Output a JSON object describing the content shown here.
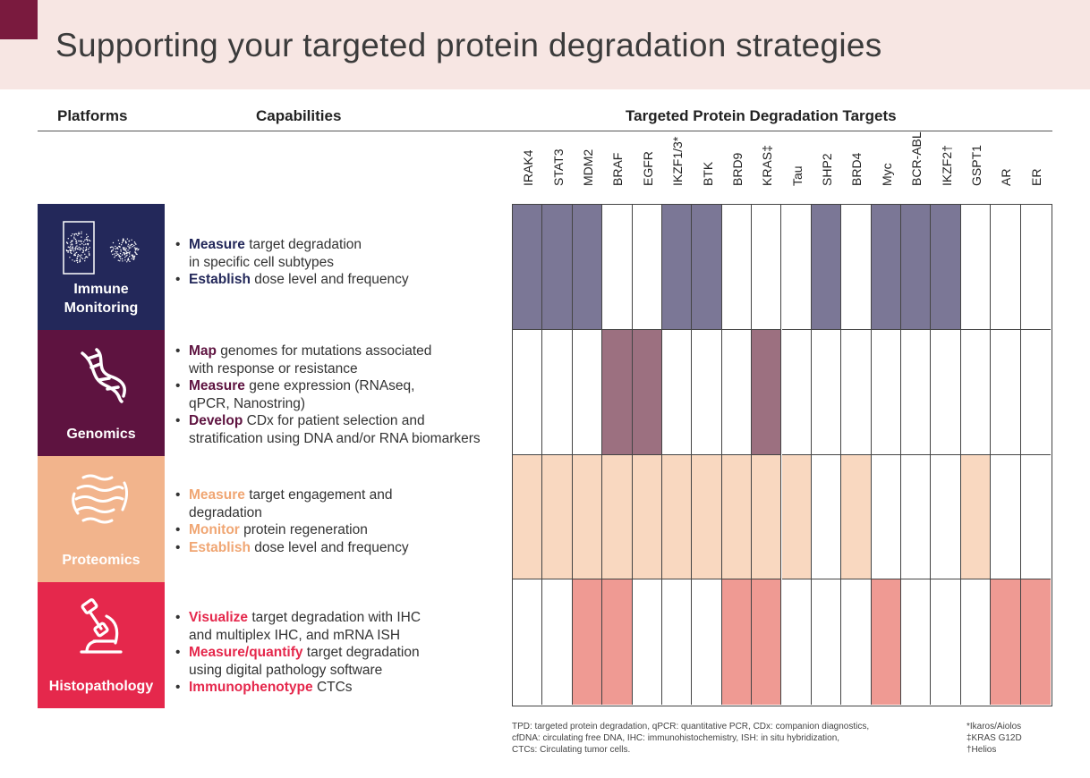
{
  "title": "Supporting your targeted protein degradation strategies",
  "headers": {
    "platforms": "Platforms",
    "capabilities": "Capabilities",
    "targets": "Targeted Protein Degradation Targets"
  },
  "targets": [
    "IRAK4",
    "STAT3",
    "MDM2",
    "BRAF",
    "EGFR",
    "IKZF1/3*",
    "BTK",
    "BRD9",
    "KRAS‡",
    "Tau",
    "SHP2",
    "BRD4",
    "Myc",
    "BCR-ABL",
    "IKZF2†",
    "GSPT1",
    "AR",
    "ER"
  ],
  "platforms": [
    {
      "name_line1": "Immune",
      "name_line2": "Monitoring",
      "icon": "flow-cytometry-icon",
      "tile_color": "#23285a",
      "keyword_color": "#23285a",
      "fill_color": "#7b7796",
      "capabilities": [
        {
          "kw": "Measure",
          "text": " target degradation",
          "cont": "in specific cell subtypes"
        },
        {
          "kw": "Establish",
          "text": " dose level and frequency",
          "cont": ""
        }
      ],
      "filled": [
        1,
        1,
        1,
        0,
        0,
        1,
        1,
        0,
        0,
        0,
        1,
        0,
        1,
        1,
        1,
        0,
        0,
        0
      ]
    },
    {
      "name_line1": "Genomics",
      "name_line2": "",
      "icon": "dna-icon",
      "tile_color": "#5e1340",
      "keyword_color": "#5e1340",
      "fill_color": "#9c7080",
      "capabilities": [
        {
          "kw": "Map",
          "text": " genomes for mutations associated",
          "cont": "with response or resistance"
        },
        {
          "kw": "Measure",
          "text": " gene expression (RNAseq,",
          "cont": "qPCR, Nanostring)"
        },
        {
          "kw": "Develop",
          "text": " CDx for patient selection and",
          "cont": "stratification using DNA and/or RNA biomarkers"
        }
      ],
      "filled": [
        0,
        0,
        0,
        1,
        1,
        0,
        0,
        0,
        1,
        0,
        0,
        0,
        0,
        0,
        0,
        0,
        0,
        0
      ]
    },
    {
      "name_line1": "Proteomics",
      "name_line2": "",
      "icon": "protein-structure-icon",
      "tile_color": "#f2b48c",
      "keyword_color": "#f0a673",
      "fill_color": "#f9d8c0",
      "capabilities": [
        {
          "kw": "Measure",
          "text": " target engagement and",
          "cont": "degradation"
        },
        {
          "kw": "Monitor",
          "text": " protein regeneration",
          "cont": ""
        },
        {
          "kw": "Establish",
          "text": " dose level and frequency",
          "cont": ""
        }
      ],
      "filled": [
        1,
        1,
        1,
        1,
        1,
        1,
        1,
        1,
        1,
        1,
        0,
        1,
        0,
        0,
        0,
        1,
        0,
        0
      ]
    },
    {
      "name_line1": "Histopathology",
      "name_line2": "",
      "icon": "microscope-icon",
      "tile_color": "#e5284c",
      "keyword_color": "#e5284c",
      "fill_color": "#ef9a93",
      "capabilities": [
        {
          "kw": "Visualize",
          "text": " target degradation with IHC",
          "cont": "and multiplex IHC, and mRNA ISH"
        },
        {
          "kw": "Measure/quantify",
          "text": " target degradation",
          "cont": "using digital pathology software"
        },
        {
          "kw": "Immunophenotype",
          "text": " CTCs",
          "cont": ""
        }
      ],
      "filled": [
        0,
        0,
        1,
        1,
        0,
        0,
        0,
        1,
        1,
        0,
        0,
        0,
        1,
        0,
        0,
        0,
        1,
        1
      ]
    }
  ],
  "footnotes": {
    "abbreviations": [
      "TPD: targeted protein degradation, qPCR: quantitative PCR, CDx: companion diagnostics,",
      "cfDNA: circulating free DNA, IHC: immunohistochemistry, ISH: in situ hybridization,",
      "CTCs: Circulating tumor cells."
    ],
    "symbols": [
      "*Ikaros/Aiolos",
      "‡KRAS G12D",
      "†Helios"
    ]
  }
}
